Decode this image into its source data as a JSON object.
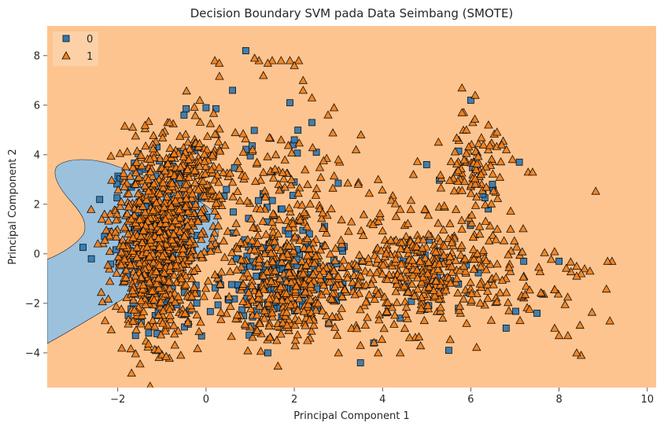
{
  "chart_data": {
    "type": "scatter",
    "title": "Decision Boundary SVM pada Data Seimbang (SMOTE)",
    "xlabel": "Principal Component 1",
    "ylabel": "Principal Component 2",
    "xlim": [
      -3.6,
      10.2
    ],
    "ylim": [
      -5.4,
      9.2
    ],
    "xticks": [
      -2,
      0,
      2,
      4,
      6,
      8,
      10
    ],
    "yticks": [
      -4,
      -2,
      0,
      2,
      4,
      6,
      8
    ],
    "grid": false,
    "legend_position": "top-left",
    "region_colors": {
      "class_0": "#9bc1dd",
      "class_1": "#fdc48f"
    },
    "series": [
      {
        "name": "0",
        "marker": "square",
        "color": "#2e78b0",
        "clusters": [
          {
            "cx": -1.0,
            "cy": 0.5,
            "sx": 0.55,
            "sy": 1.8,
            "n": 160
          },
          {
            "cx": 1.7,
            "cy": -0.9,
            "sx": 0.7,
            "sy": 1.0,
            "n": 140
          },
          {
            "cx": 1.2,
            "cy": 2.6,
            "sx": 0.8,
            "sy": 1.2,
            "n": 30
          },
          {
            "cx": 5.2,
            "cy": -1.2,
            "sx": 0.7,
            "sy": 1.0,
            "n": 20
          },
          {
            "cx": 6.0,
            "cy": 3.0,
            "sx": 0.5,
            "sy": 1.0,
            "n": 8
          }
        ],
        "points": [
          [
            -2.6,
            -0.2
          ],
          [
            -2.2,
            0.9
          ],
          [
            -2.3,
            0.7
          ],
          [
            0.9,
            8.2
          ],
          [
            1.9,
            6.1
          ],
          [
            6.0,
            6.2
          ],
          [
            2.4,
            5.3
          ],
          [
            2.0,
            4.6
          ],
          [
            3.5,
            -4.4
          ],
          [
            1.4,
            -4.0
          ],
          [
            3.8,
            -3.6
          ],
          [
            4.4,
            -2.6
          ],
          [
            5.5,
            -3.9
          ],
          [
            6.8,
            -3.0
          ],
          [
            7.5,
            -2.4
          ],
          [
            8.0,
            -0.3
          ],
          [
            7.2,
            -0.3
          ],
          [
            7.1,
            3.7
          ],
          [
            5.0,
            3.6
          ],
          [
            2.5,
            4.1
          ],
          [
            -0.5,
            5.6
          ],
          [
            0.0,
            5.9
          ],
          [
            0.6,
            6.6
          ],
          [
            -1.3,
            -3.2
          ],
          [
            -1.6,
            -3.3
          ]
        ]
      },
      {
        "name": "1",
        "marker": "triangle",
        "color": "#f58018",
        "clusters": [
          {
            "cx": -1.1,
            "cy": 0.3,
            "sx": 0.5,
            "sy": 1.7,
            "n": 900
          },
          {
            "cx": -0.3,
            "cy": 3.2,
            "sx": 0.5,
            "sy": 1.2,
            "n": 150
          },
          {
            "cx": 1.9,
            "cy": -1.3,
            "sx": 0.8,
            "sy": 1.1,
            "n": 380
          },
          {
            "cx": 1.4,
            "cy": 2.6,
            "sx": 1.1,
            "sy": 1.3,
            "n": 130
          },
          {
            "cx": 3.6,
            "cy": -0.2,
            "sx": 1.0,
            "sy": 1.6,
            "n": 110
          },
          {
            "cx": 5.1,
            "cy": -0.7,
            "sx": 0.7,
            "sy": 1.1,
            "n": 280
          },
          {
            "cx": 6.0,
            "cy": 3.4,
            "sx": 0.4,
            "sy": 0.9,
            "n": 90
          },
          {
            "cx": 7.3,
            "cy": -0.9,
            "sx": 0.8,
            "sy": 0.8,
            "n": 60
          }
        ],
        "points": [
          [
            1.7,
            7.8
          ],
          [
            1.5,
            7.8
          ],
          [
            1.9,
            7.8
          ],
          [
            2.1,
            7.8
          ],
          [
            1.4,
            7.7
          ],
          [
            1.2,
            7.8
          ],
          [
            2.0,
            7.6
          ],
          [
            0.2,
            7.8
          ],
          [
            0.3,
            7.7
          ],
          [
            1.1,
            7.9
          ],
          [
            1.3,
            7.2
          ],
          [
            2.2,
            7.0
          ],
          [
            2.2,
            6.6
          ],
          [
            2.4,
            6.3
          ],
          [
            6.1,
            6.4
          ],
          [
            5.8,
            6.7
          ],
          [
            5.8,
            5.7
          ],
          [
            6.4,
            5.2
          ],
          [
            6.7,
            4.4
          ],
          [
            5.9,
            5.0
          ],
          [
            9.2,
            -0.3
          ],
          [
            9.1,
            -0.3
          ],
          [
            8.7,
            -0.7
          ],
          [
            8.5,
            -0.8
          ],
          [
            8.4,
            -0.9
          ],
          [
            8.5,
            -4.1
          ],
          [
            8.4,
            -4.0
          ],
          [
            8.0,
            -3.3
          ],
          [
            8.2,
            -3.3
          ],
          [
            7.9,
            -3.0
          ],
          [
            3.0,
            -4.0
          ],
          [
            3.9,
            -4.0
          ],
          [
            3.5,
            -3.7
          ],
          [
            4.4,
            -4.0
          ],
          [
            2.3,
            -3.5
          ],
          [
            1.7,
            4.6
          ],
          [
            3.4,
            4.2
          ],
          [
            3.0,
            3.8
          ],
          [
            2.9,
            5.9
          ],
          [
            3.9,
            3.0
          ],
          [
            4.4,
            1.8
          ],
          [
            4.7,
            3.2
          ],
          [
            7.3,
            3.3
          ],
          [
            7.4,
            3.3
          ],
          [
            6.9,
            1.0
          ],
          [
            6.6,
            1.0
          ],
          [
            6.2,
            1.1
          ],
          [
            5.8,
            1.0
          ]
        ]
      }
    ]
  },
  "legend": {
    "entries": [
      "0",
      "1"
    ]
  }
}
